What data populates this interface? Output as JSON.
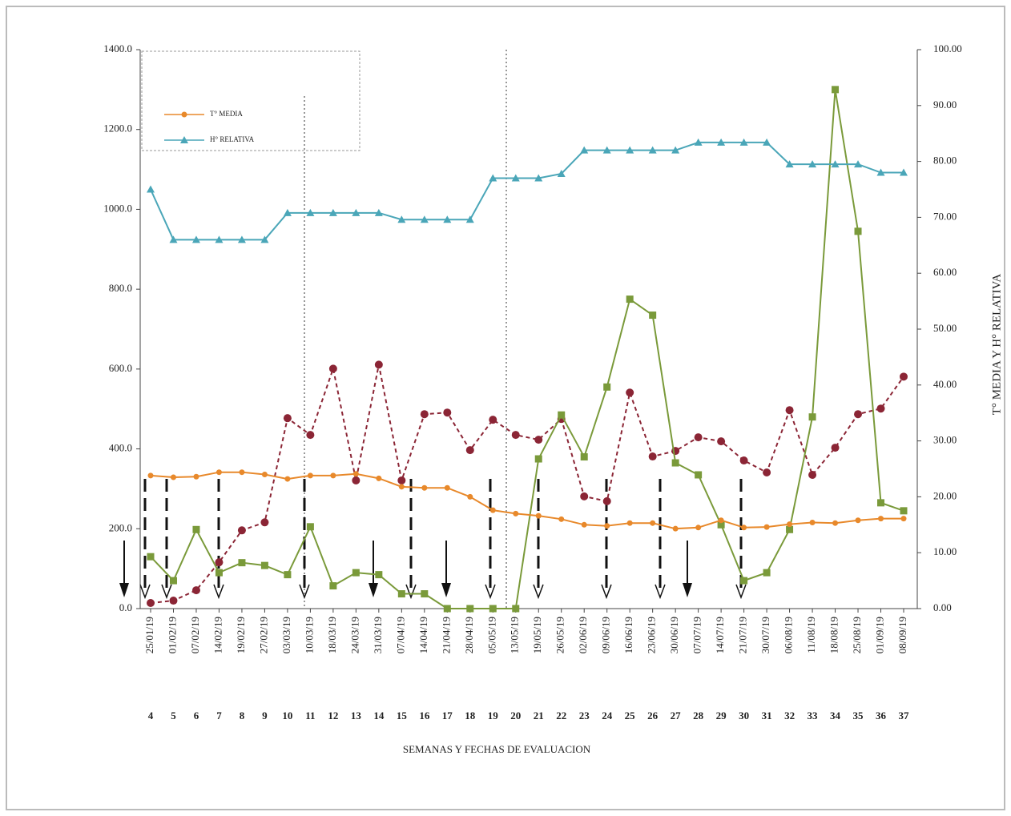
{
  "chart_data": {
    "type": "line",
    "x_label": "SEMANAS Y FECHAS DE EVALUACION",
    "y2_label": "T° MEDIA Y H° RELATIVA",
    "categories": [
      "25/01/19",
      "01/02/19",
      "07/02/19",
      "14/02/19",
      "19/02/19",
      "27/02/19",
      "03/03/19",
      "10/03/19",
      "18/03/19",
      "24/03/19",
      "31/03/19",
      "07/04/19",
      "14/04/19",
      "21/04/19",
      "28/04/19",
      "05/05/19",
      "13/05/19",
      "19/05/19",
      "26/05/19",
      "02/06/19",
      "09/06/19",
      "16/06/19",
      "23/06/19",
      "30/06/19",
      "07/07/19",
      "14/07/19",
      "21/07/19",
      "30/07/19",
      "06/08/19",
      "11/08/19",
      "18/08/19",
      "25/08/19",
      "01/09/19",
      "08/09/19"
    ],
    "weeks": [
      4,
      5,
      6,
      7,
      8,
      9,
      10,
      11,
      12,
      13,
      14,
      15,
      16,
      17,
      18,
      19,
      20,
      21,
      22,
      23,
      24,
      25,
      26,
      27,
      28,
      29,
      30,
      31,
      32,
      33,
      34,
      35,
      36,
      37
    ],
    "ylim": [
      0,
      1400
    ],
    "yticks": [
      {
        "value": 0,
        "label": "0.0"
      },
      {
        "value": 200,
        "label": "200.0"
      },
      {
        "value": 400,
        "label": "400.0"
      },
      {
        "value": 600,
        "label": "600.0"
      },
      {
        "value": 800,
        "label": "800.0"
      },
      {
        "value": 1000,
        "label": "1000.0"
      },
      {
        "value": 1200,
        "label": "1200.0"
      },
      {
        "value": 1400,
        "label": "1400.0"
      }
    ],
    "y2lim": [
      0,
      100
    ],
    "y2ticks": [
      {
        "value": 0,
        "label": "0.00"
      },
      {
        "value": 10,
        "label": "10.00"
      },
      {
        "value": 20,
        "label": "20.00"
      },
      {
        "value": 30,
        "label": "30.00"
      },
      {
        "value": 40,
        "label": "40.00"
      },
      {
        "value": 50,
        "label": "50.00"
      },
      {
        "value": 60,
        "label": "60.00"
      },
      {
        "value": 70,
        "label": "70.00"
      },
      {
        "value": 80,
        "label": "80.00"
      },
      {
        "value": 90,
        "label": "90.00"
      },
      {
        "value": 100,
        "label": "100.00"
      }
    ],
    "series": [
      {
        "color": "#8b2535",
        "marker": "circle",
        "dashed": true,
        "values": [
          14,
          20,
          46,
          116,
          196,
          216,
          477,
          435,
          601,
          321,
          611,
          321,
          487,
          491,
          397,
          473,
          435,
          423,
          475,
          281,
          269,
          541,
          381,
          395,
          429,
          419,
          371,
          341,
          497,
          335,
          403,
          487,
          501,
          581
        ]
      },
      {
        "color": "#7a9a3a",
        "marker": "square",
        "values": [
          130,
          70,
          198,
          90,
          115,
          108,
          85,
          205,
          57,
          90,
          85,
          37,
          37,
          0,
          0,
          0,
          0,
          375,
          485,
          380,
          555,
          775,
          735,
          365,
          335,
          210,
          70,
          90,
          198,
          480,
          1300,
          945,
          265,
          245
        ]
      },
      {
        "name": "T° MEDIA",
        "color": "#e8892b",
        "marker": "circle",
        "axis": "y2",
        "values": [
          23.8,
          23.5,
          23.6,
          24.4,
          24.4,
          24,
          23.2,
          23.8,
          23.8,
          24.1,
          23.3,
          21.8,
          21.6,
          21.6,
          20,
          17.6,
          17,
          16.6,
          16,
          15,
          14.8,
          15.3,
          15.3,
          14.3,
          14.5,
          15.8,
          14.5,
          14.6,
          15.1,
          15.4,
          15.3,
          15.8,
          16.1,
          16.1
        ]
      },
      {
        "name": "H° RELATIVA",
        "color": "#4aa6b8",
        "marker": "triangle",
        "axis": "y2",
        "values": [
          75,
          66,
          66,
          66,
          66,
          66,
          70.8,
          70.8,
          70.8,
          70.8,
          70.8,
          69.6,
          69.6,
          69.6,
          69.6,
          77,
          77,
          77,
          77.8,
          82,
          82,
          82,
          82,
          82,
          83.4,
          83.4,
          83.4,
          83.4,
          79.5,
          79.5,
          79.5,
          79.5,
          78,
          78
        ]
      }
    ]
  }
}
